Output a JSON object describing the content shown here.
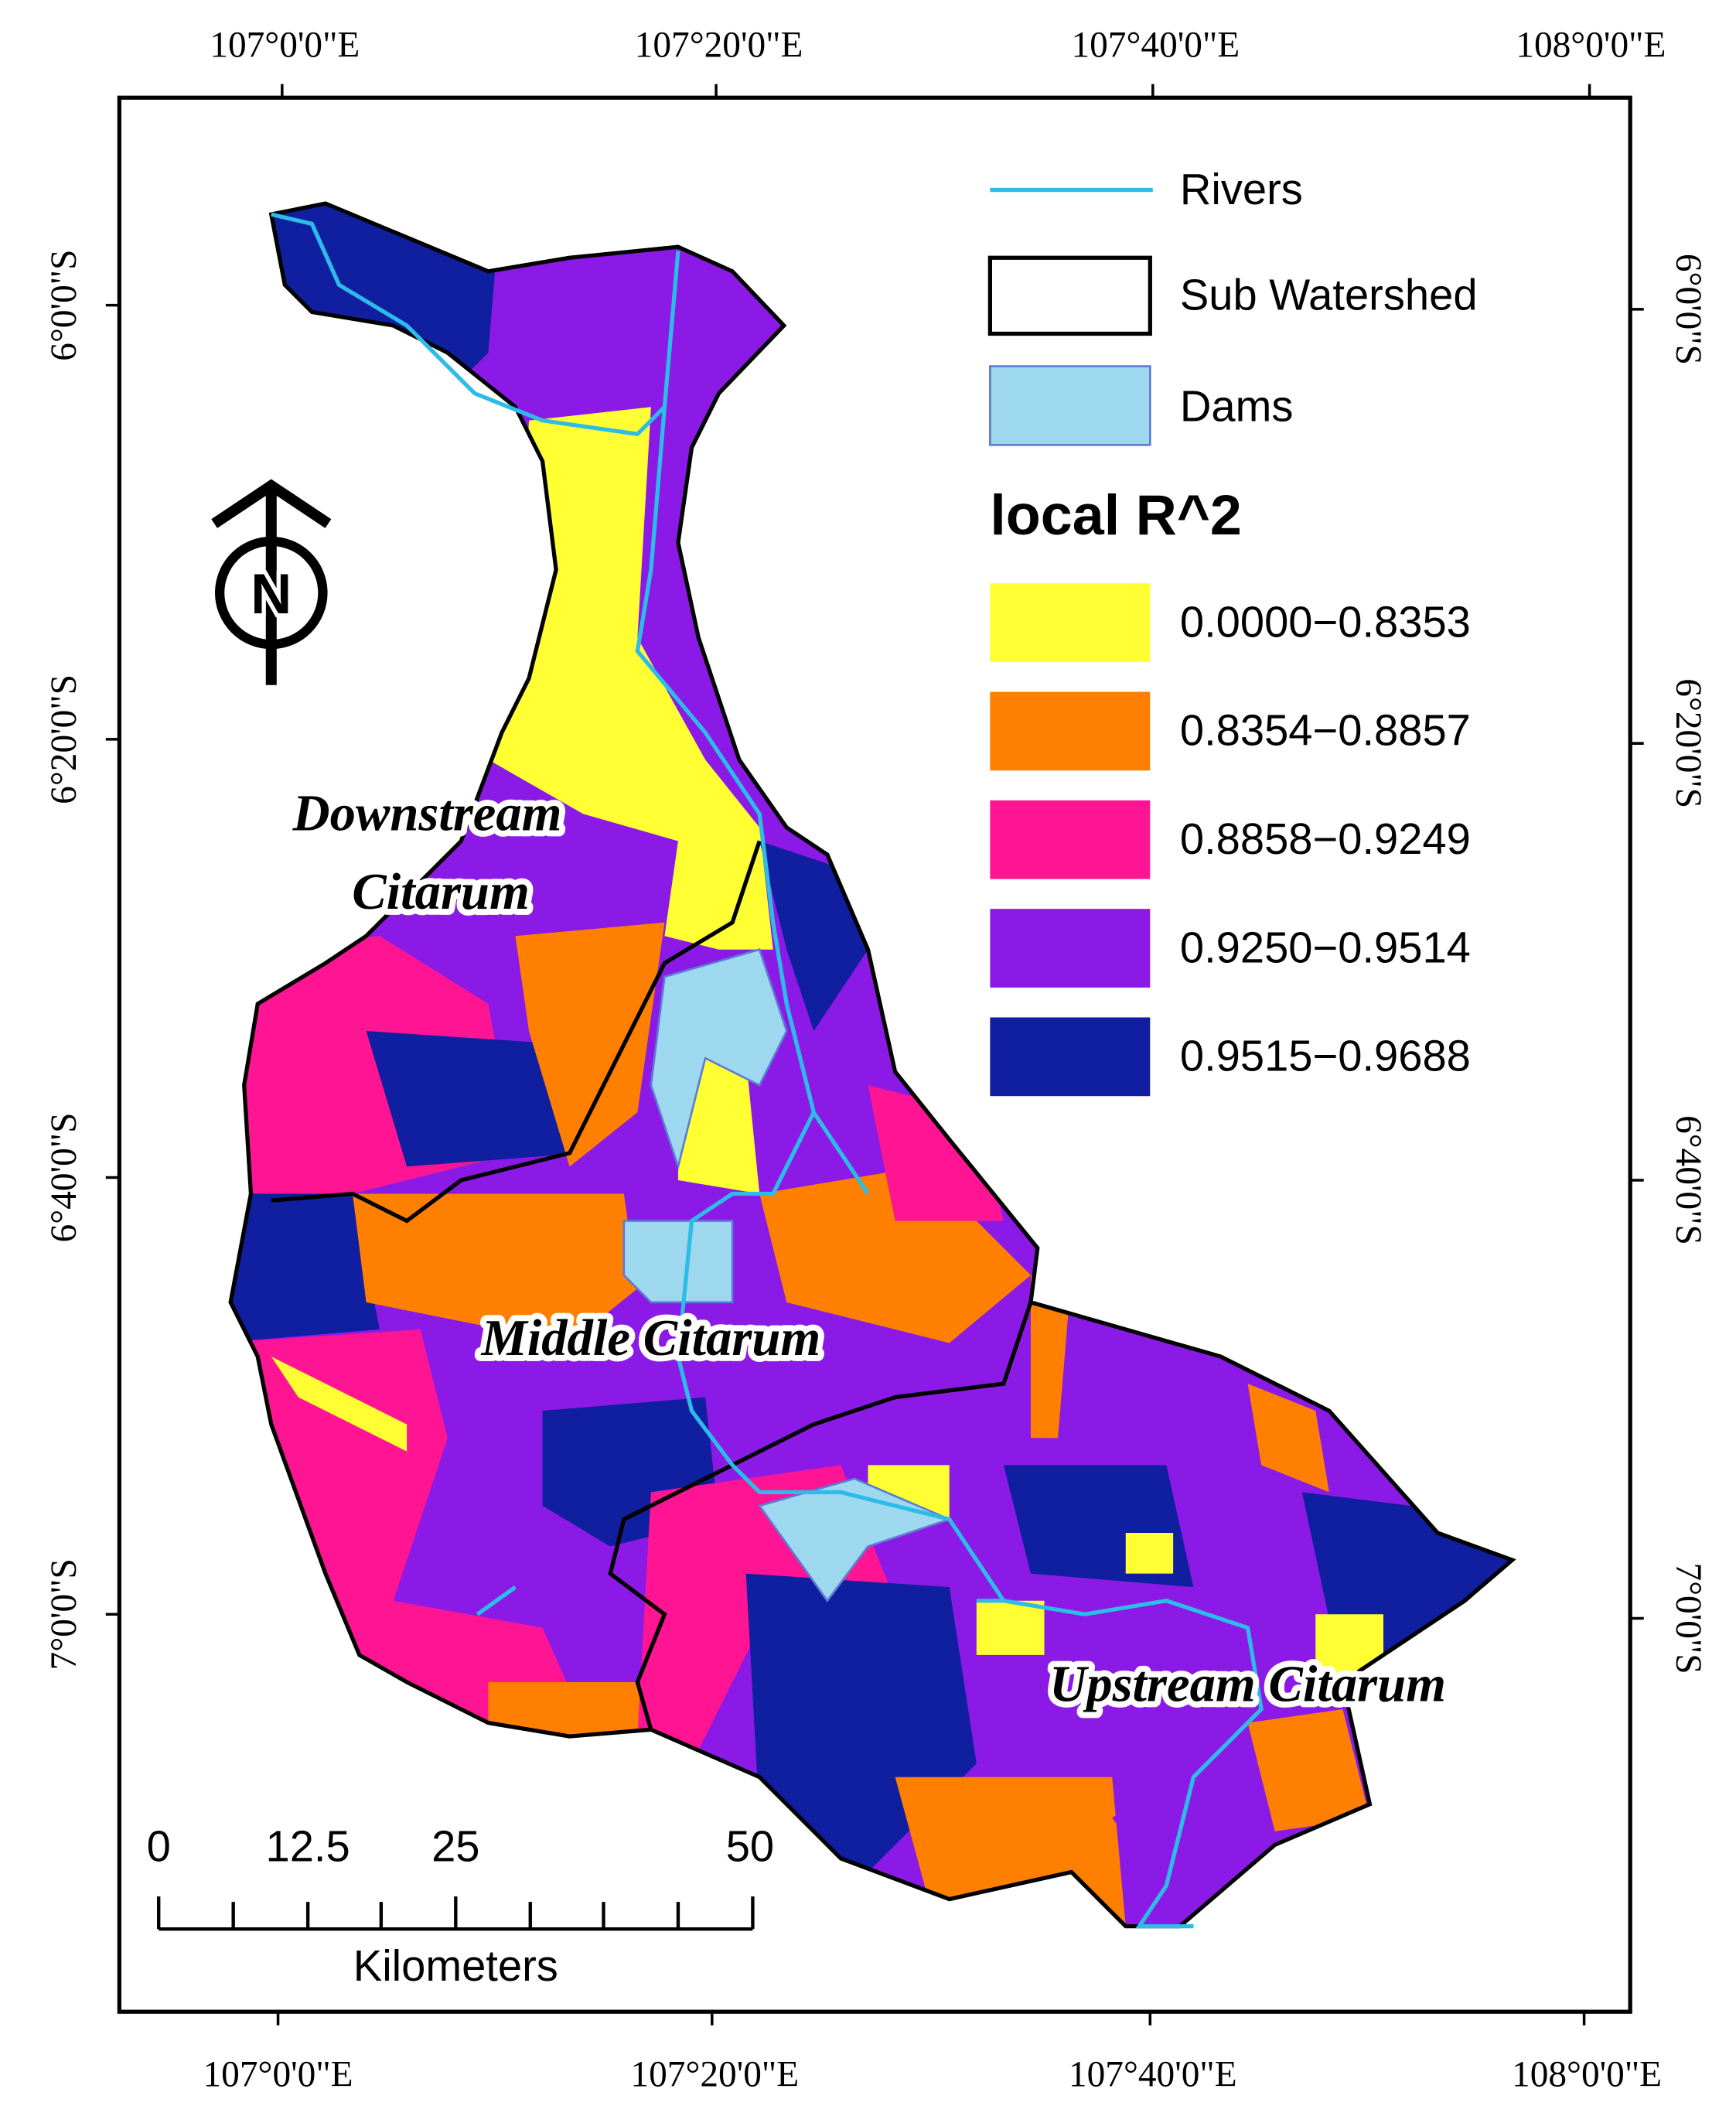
{
  "map": {
    "top_longitudes": [
      "107°0'0\"E",
      "107°20'0\"E",
      "107°40'0\"E",
      "108°0'0\"E"
    ],
    "bottom_longitudes": [
      "107°0'0\"E",
      "107°20'0\"E",
      "107°40'0\"E",
      "108°0'0\"E"
    ],
    "left_latitudes": [
      "6°0'0\"S",
      "6°20'0\"S",
      "6°40'0\"S",
      "7°0'0\"S"
    ],
    "right_latitudes": [
      "6°0'0\"S",
      "6°20'0\"S",
      "6°40'0\"S",
      "7°0'0\"S"
    ],
    "legend": {
      "items": [
        "Rivers",
        "Sub Watershed",
        "Dams"
      ],
      "title": "local R^2",
      "classes": [
        {
          "label": "0.0000−0.8353",
          "color": "#ffff33"
        },
        {
          "label": "0.8354−0.8857",
          "color": "#ff8000"
        },
        {
          "label": "0.8858−0.9249",
          "color": "#ff1493"
        },
        {
          "label": "0.9250−0.9514",
          "color": "#8c1ae6"
        },
        {
          "label": "0.9515−0.9688",
          "color": "#0f1fa0"
        }
      ]
    },
    "region_labels": {
      "downstream": [
        "Downstream",
        "Citarum"
      ],
      "middle": "Middle Citarum",
      "upstream": "Upstream Citarum"
    },
    "scale_bar": {
      "ticks": [
        "0",
        "12.5",
        "25",
        "50"
      ],
      "unit": "Kilometers"
    },
    "north_arrow": "N"
  }
}
